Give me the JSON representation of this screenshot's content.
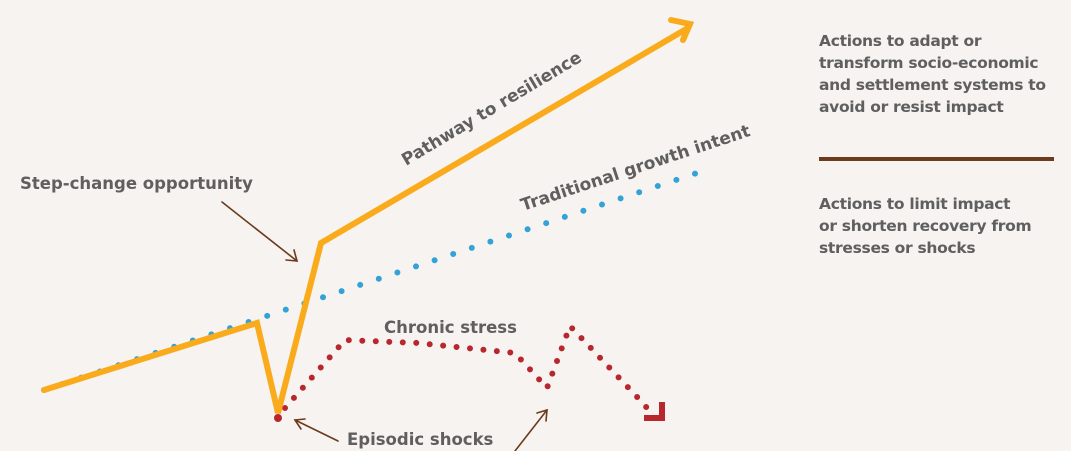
{
  "colors": {
    "background": "#f6f3f0",
    "resilience_path": "#f9ab1c",
    "growth_dots": "#33a2d6",
    "stress_dots": "#b8272e",
    "arrows": "#6b3b1c",
    "text": "#5f5f5f",
    "divider": "#6b3b1c"
  },
  "labels": {
    "pathway": "Pathway to resilience",
    "growth": "Traditional growth intent",
    "step_change": "Step-change opportunity",
    "chronic": "Chronic stress",
    "episodic": "Episodic shocks"
  },
  "legend": {
    "top_lines": [
      "Actions to adapt or",
      "transform socio-economic",
      "and settlement systems to",
      "avoid or resist impact"
    ],
    "bottom_lines": [
      "Actions to limit impact",
      "or shorten recovery from",
      "stresses or shocks"
    ]
  }
}
